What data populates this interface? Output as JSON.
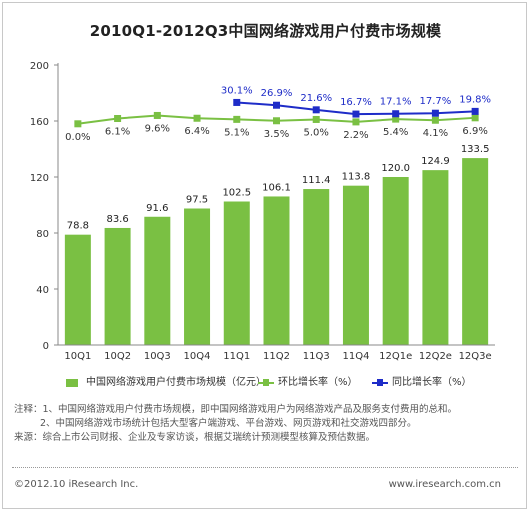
{
  "title": "2010Q1-2012Q3中国网络游戏用户付费市场规模",
  "chart_data": {
    "type": "bar",
    "categories": [
      "10Q1",
      "10Q2",
      "10Q3",
      "10Q4",
      "11Q1",
      "11Q2",
      "11Q3",
      "11Q4",
      "12Q1e",
      "12Q2e",
      "12Q3e"
    ],
    "ylim": [
      0,
      200
    ],
    "yticks": [
      0,
      40,
      80,
      120,
      160,
      200
    ],
    "series": [
      {
        "name": "中国网络游戏用户付费市场规模（亿元）",
        "type": "bar",
        "color": "#7ac043",
        "values": [
          78.8,
          83.6,
          91.6,
          97.5,
          102.5,
          106.1,
          111.4,
          113.8,
          120.0,
          124.9,
          133.5
        ],
        "labels": [
          "78.8",
          "83.6",
          "91.6",
          "97.5",
          "102.5",
          "106.1",
          "111.4",
          "113.8",
          "120.0",
          "124.9",
          "133.5"
        ]
      },
      {
        "name": "环比增长率（%）",
        "type": "line",
        "color": "#7ac043",
        "values": [
          0.0,
          6.1,
          9.6,
          6.4,
          5.1,
          3.5,
          5.0,
          2.2,
          5.4,
          4.1,
          6.9
        ],
        "labels": [
          "0.0%",
          "6.1%",
          "9.6%",
          "6.4%",
          "5.1%",
          "3.5%",
          "5.0%",
          "2.2%",
          "5.4%",
          "4.1%",
          "6.9%"
        ]
      },
      {
        "name": "同比增长率（%）",
        "type": "line",
        "color": "#1e2cc8",
        "values": [
          null,
          null,
          null,
          null,
          30.1,
          26.9,
          21.6,
          16.7,
          17.1,
          17.7,
          19.8
        ],
        "labels": [
          "",
          "",
          "",
          "",
          "30.1%",
          "26.9%",
          "21.6%",
          "16.7%",
          "17.1%",
          "17.7%",
          "19.8%"
        ]
      }
    ]
  },
  "legend": {
    "bar_label": "中国网络游戏用户付费市场规模（亿元）",
    "qoq_label": "环比增长率（%）",
    "yoy_label": "同比增长率（%）"
  },
  "notes": {
    "line1": "注释：1、中国网络游戏用户付费市场规模，即中国网络游戏用户为网络游戏产品及服务支付费用的总和。",
    "line2": "2、中国网络游戏市场统计包括大型客户端游戏、平台游戏、网页游戏和社交游戏四部分。",
    "line3": "来源：综合上市公司财报、企业及专家访谈，根据艾瑞统计预测模型核算及预估数据。"
  },
  "footer": {
    "copyright": "©2012.10 iResearch Inc.",
    "site": "www.iresearch.com.cn"
  },
  "colors": {
    "bar": "#7ac043",
    "qoq_line": "#7ac043",
    "yoy_line": "#1e2cc8"
  }
}
